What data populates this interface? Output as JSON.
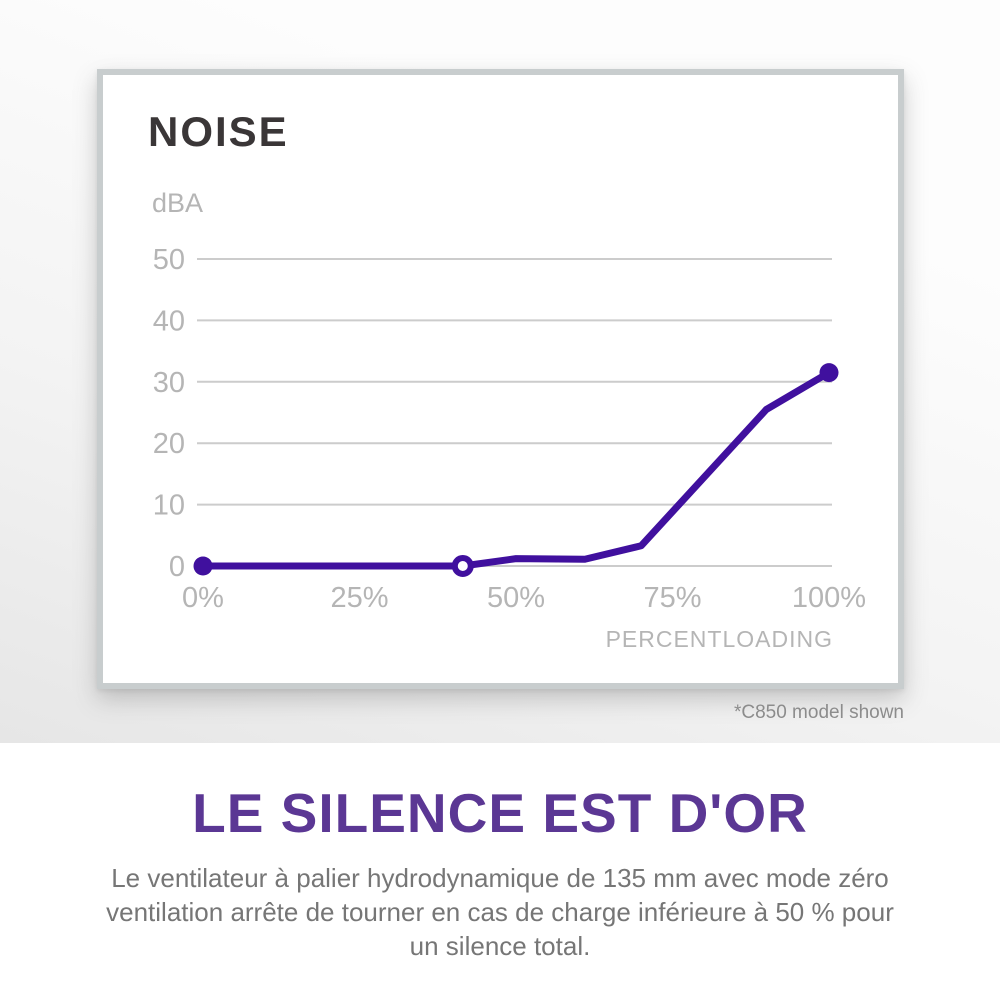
{
  "chart_card": {
    "footnote": "*C850 model shown"
  },
  "chart_data": {
    "type": "line",
    "title": "NOISE",
    "ylabel": "dBA",
    "xlabel": "PERCENTLOADING",
    "x_tick_values": [
      0,
      25,
      50,
      75,
      100
    ],
    "x_tick_labels": [
      "0%",
      "25%",
      "50%",
      "75%",
      "100%"
    ],
    "y_ticks": [
      0,
      10,
      20,
      30,
      40,
      50
    ],
    "xlim": [
      0,
      100
    ],
    "ylim": [
      0,
      50
    ],
    "grid": "horizontal",
    "legend": "none",
    "series": [
      {
        "name": "noise-dba",
        "color": "#40109e",
        "points": [
          {
            "x": 0,
            "y": 0
          },
          {
            "x": 41.5,
            "y": 0
          },
          {
            "x": 50,
            "y": 1.2
          },
          {
            "x": 61,
            "y": 1.1
          },
          {
            "x": 70,
            "y": 3.3
          },
          {
            "x": 90,
            "y": 25.5
          },
          {
            "x": 100,
            "y": 31.5
          }
        ],
        "markers": [
          {
            "x": 0,
            "y": 0,
            "style": "filled"
          },
          {
            "x": 41.5,
            "y": 0,
            "style": "open"
          },
          {
            "x": 100,
            "y": 31.5,
            "style": "filled"
          }
        ]
      }
    ],
    "colors": {
      "line": "#40109e",
      "gridline": "#cccccc",
      "tick_label": "#b5b5b5",
      "title": "#3a3637"
    }
  },
  "section": {
    "heading": "LE SILENCE EST D'OR",
    "heading_color": "#5b3794",
    "body": "Le ventilateur à palier hydrodynamique de 135 mm avec mode zéro ventilation arrête de tourner en cas de charge inférieure à 50 % pour un silence total.",
    "body_lines": [
      "Le ventilateur à palier hydrodynamique de 135 mm avec mode zéro",
      "ventilation arrête de tourner en cas de charge inférieure à 50 % pour",
      "un silence total."
    ]
  }
}
